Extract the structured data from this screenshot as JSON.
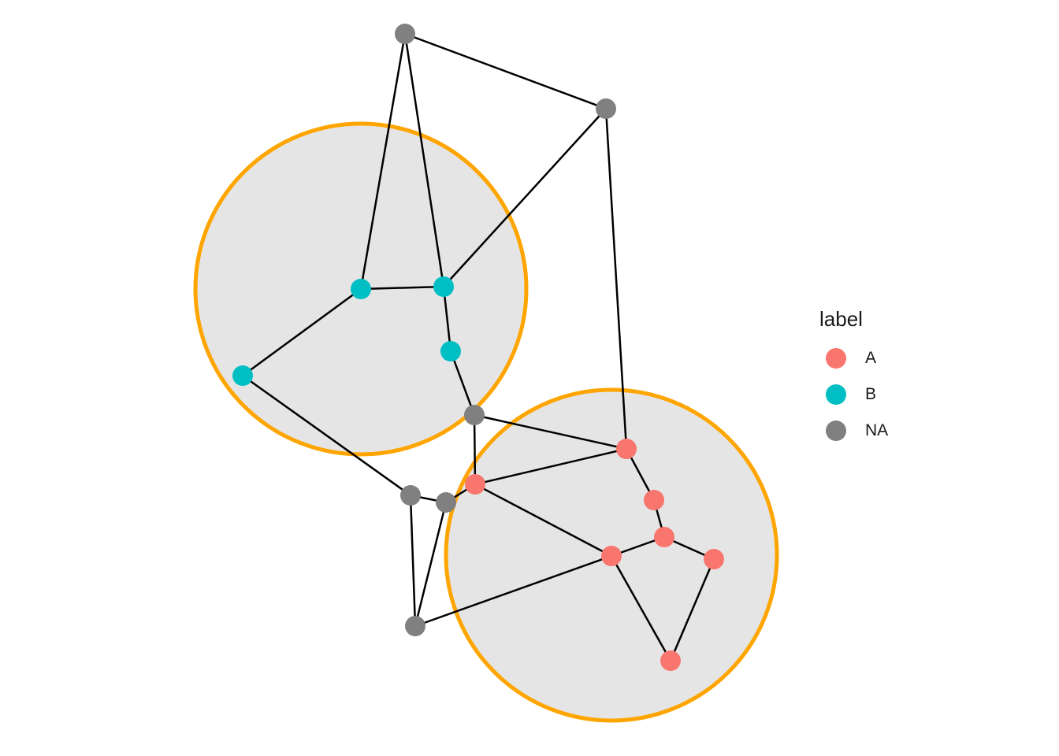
{
  "colors": {
    "A": "#F8766D",
    "B": "#00BFC4",
    "NA": "#808080",
    "hull_stroke": "#FFA500",
    "hull_fill": "#E5E5E5",
    "edge": "#000000"
  },
  "legend": {
    "title": "label",
    "items": [
      {
        "label": "A",
        "color": "#F8766D"
      },
      {
        "label": "B",
        "color": "#00BFC4"
      },
      {
        "label": "NA",
        "color": "#808080"
      }
    ]
  },
  "graph": {
    "groups": [
      {
        "label": "B",
        "nodes": [
          "b1",
          "b2",
          "b3",
          "b4"
        ]
      },
      {
        "label": "A",
        "nodes": [
          "a1",
          "a2",
          "a3",
          "a4",
          "a5",
          "a6",
          "a7"
        ]
      }
    ],
    "nodes": [
      {
        "id": "n_top",
        "label": "NA"
      },
      {
        "id": "n_tr",
        "label": "NA"
      },
      {
        "id": "b1",
        "label": "B"
      },
      {
        "id": "b2",
        "label": "B"
      },
      {
        "id": "b3",
        "label": "B"
      },
      {
        "id": "b4",
        "label": "B"
      },
      {
        "id": "n_mid",
        "label": "NA"
      },
      {
        "id": "a1",
        "label": "A"
      },
      {
        "id": "a2",
        "label": "A"
      },
      {
        "id": "a3",
        "label": "A"
      },
      {
        "id": "a4",
        "label": "A"
      },
      {
        "id": "a5",
        "label": "A"
      },
      {
        "id": "a6",
        "label": "A"
      },
      {
        "id": "a7",
        "label": "A"
      },
      {
        "id": "n_l1",
        "label": "NA"
      },
      {
        "id": "n_l2",
        "label": "NA"
      },
      {
        "id": "n_bot",
        "label": "NA"
      }
    ],
    "edges": [
      [
        "n_top",
        "n_tr"
      ],
      [
        "n_top",
        "b1"
      ],
      [
        "n_top",
        "b2"
      ],
      [
        "n_tr",
        "b2"
      ],
      [
        "n_tr",
        "a1"
      ],
      [
        "b1",
        "b2"
      ],
      [
        "b1",
        "b4"
      ],
      [
        "b2",
        "b3"
      ],
      [
        "b3",
        "n_mid"
      ],
      [
        "n_mid",
        "a1"
      ],
      [
        "n_mid",
        "a2"
      ],
      [
        "b4",
        "n_l1"
      ],
      [
        "n_l1",
        "n_l2"
      ],
      [
        "n_l1",
        "n_bot"
      ],
      [
        "n_l2",
        "a2"
      ],
      [
        "n_l2",
        "n_bot"
      ],
      [
        "a2",
        "a1"
      ],
      [
        "a2",
        "a5"
      ],
      [
        "a1",
        "a3"
      ],
      [
        "a3",
        "a4"
      ],
      [
        "a4",
        "a5"
      ],
      [
        "a4",
        "a6"
      ],
      [
        "a6",
        "a7"
      ],
      [
        "a5",
        "a7"
      ],
      [
        "a5",
        "n_bot"
      ]
    ]
  }
}
